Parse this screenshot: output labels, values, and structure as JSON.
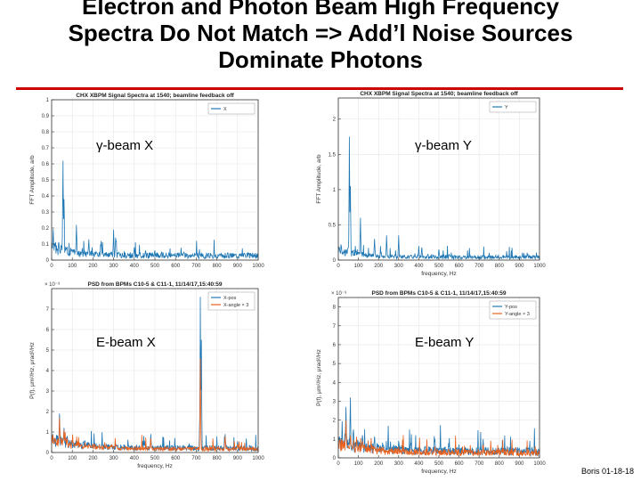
{
  "slide": {
    "title_lines": [
      "Electron and Photon Beam High Frequency",
      "Spectra Do Not Match => Add’l Noise Sources",
      "Dominate Photons"
    ],
    "footer": "Boris 01-18-18",
    "accent_color": "#cc0000"
  },
  "overlays": {
    "gx": "γ-beam X",
    "gy": "γ-beam Y",
    "ex": "E-beam X",
    "ey": "E-beam Y"
  },
  "chart_data": [
    {
      "type": "line",
      "title": "CHX XBPM Signal Spectra at 1540; beamline feedback off",
      "xlabel": "",
      "ylabel": "FFT Amplitude, arb",
      "xlim": [
        0,
        1000
      ],
      "ylim": [
        0,
        1
      ],
      "xticks": [
        0,
        100,
        200,
        300,
        400,
        500,
        600,
        700,
        800,
        900,
        1000
      ],
      "yticks": [
        0,
        0.1,
        0.2,
        0.3,
        0.4,
        0.5,
        0.6,
        0.7,
        0.8,
        0.9,
        1
      ],
      "ytick_labels": [
        "0",
        "0.1",
        "0.2",
        "0.3",
        "0.4",
        "0.5",
        "0.6",
        "0.7",
        "0.8",
        "0.9",
        "1"
      ],
      "exponent_label": "",
      "legend_position": "top-right",
      "series": [
        {
          "name": "X",
          "color": "#1f77b4",
          "noise_base": 0.04,
          "decay": 0.075,
          "decay_scale": 110,
          "seed": 3,
          "peaks": [
            [
              55,
              0.62
            ],
            [
              60,
              0.38
            ],
            [
              120,
              0.22
            ],
            [
              180,
              0.13
            ],
            [
              240,
              0.12
            ],
            [
              300,
              0.19
            ],
            [
              310,
              0.14
            ],
            [
              400,
              0.08
            ],
            [
              455,
              0.06
            ],
            [
              500,
              0.06
            ],
            [
              640,
              0.05
            ]
          ]
        }
      ]
    },
    {
      "type": "line",
      "title": "CHX XBPM Signal Spectra at 1540; beamline feedback off",
      "xlabel": "frequency, Hz",
      "ylabel": "FFT Amplitude, arb",
      "xlim": [
        0,
        1000
      ],
      "ylim": [
        0,
        2.3
      ],
      "xticks": [
        0,
        100,
        200,
        300,
        400,
        500,
        600,
        700,
        800,
        900,
        1000
      ],
      "yticks": [
        0,
        0.5,
        1,
        1.5,
        2
      ],
      "ytick_labels": [
        "0",
        "0.5",
        "1",
        "1.5",
        "2"
      ],
      "exponent_label": "",
      "legend_position": "top-right",
      "series": [
        {
          "name": "Y",
          "color": "#1f77b4",
          "noise_base": 0.06,
          "decay": 0.14,
          "decay_scale": 110,
          "seed": 7,
          "peaks": [
            [
              55,
              1.75
            ],
            [
              60,
              1.05
            ],
            [
              110,
              0.6
            ],
            [
              180,
              0.3
            ],
            [
              240,
              0.35
            ],
            [
              300,
              0.35
            ],
            [
              400,
              0.2
            ],
            [
              415,
              0.18
            ],
            [
              500,
              0.15
            ],
            [
              550,
              0.08
            ]
          ]
        }
      ]
    },
    {
      "type": "line",
      "title": "PSD from BPMs C10-5 & C11-1, 11/14/17,15:40:59",
      "xlabel": "frequency, Hz",
      "ylabel": "P(f), μm²/Hz, μrad²/Hz",
      "xlim": [
        0,
        1000
      ],
      "ylim": [
        0,
        8
      ],
      "xticks": [
        0,
        100,
        200,
        300,
        400,
        500,
        600,
        700,
        800,
        900,
        1000
      ],
      "yticks": [
        0,
        1,
        2,
        3,
        4,
        5,
        6,
        7
      ],
      "ytick_labels": [
        "0",
        "1",
        "2",
        "3",
        "4",
        "5",
        "6",
        "7"
      ],
      "exponent_label": "× 10⁻³",
      "legend_position": "top-right",
      "series": [
        {
          "name": "X-pos",
          "color": "#1f77b4",
          "noise_base": 0.3,
          "decay": 0.6,
          "decay_scale": 140,
          "seed": 11,
          "peaks": [
            [
              38,
              1.9
            ],
            [
              60,
              1.2
            ],
            [
              75,
              0.8
            ],
            [
              180,
              0.5
            ],
            [
              290,
              0.4
            ],
            [
              300,
              0.3
            ],
            [
              480,
              0.9
            ],
            [
              720,
              7.6
            ],
            [
              725,
              5.5
            ],
            [
              840,
              0.9
            ],
            [
              900,
              0.55
            ],
            [
              960,
              0.3
            ]
          ]
        },
        {
          "name": "X-angle × 3",
          "color": "#e8601c",
          "noise_base": 0.25,
          "decay": 0.55,
          "decay_scale": 140,
          "seed": 13,
          "peaks": [
            [
              38,
              1.7
            ],
            [
              60,
              1.1
            ],
            [
              75,
              0.7
            ],
            [
              180,
              0.4
            ],
            [
              290,
              0.35
            ],
            [
              480,
              0.7
            ],
            [
              720,
              4.6
            ],
            [
              840,
              0.8
            ],
            [
              900,
              0.4
            ]
          ]
        }
      ]
    },
    {
      "type": "line",
      "title": "PSD from BPMs C10-5 & C11-1, 11/14/17,15:40:59",
      "xlabel": "frequency, Hz",
      "ylabel": "P(f), μm²/Hz, μrad²/Hz",
      "xlim": [
        0,
        1000
      ],
      "ylim": [
        0,
        8.5
      ],
      "xticks": [
        0,
        100,
        200,
        300,
        400,
        500,
        600,
        700,
        800,
        900,
        1000
      ],
      "yticks": [
        0,
        1,
        2,
        3,
        4,
        5,
        6,
        7,
        8
      ],
      "ytick_labels": [
        "0",
        "1",
        "2",
        "3",
        "4",
        "5",
        "6",
        "7",
        "8"
      ],
      "exponent_label": "× 10⁻³",
      "legend_position": "top-right",
      "series": [
        {
          "name": "Y-pos",
          "color": "#1f77b4",
          "noise_base": 0.5,
          "decay": 0.8,
          "decay_scale": 140,
          "seed": 17,
          "peaks": [
            [
              38,
              2.7
            ],
            [
              60,
              3.2
            ],
            [
              75,
              1.5
            ],
            [
              120,
              1.2
            ],
            [
              180,
              1.1
            ],
            [
              220,
              0.8
            ],
            [
              300,
              0.9
            ],
            [
              360,
              0.8
            ],
            [
              480,
              1.0
            ],
            [
              600,
              0.7
            ],
            [
              720,
              1.0
            ],
            [
              840,
              0.6
            ],
            [
              900,
              0.5
            ]
          ]
        },
        {
          "name": "Y-angle × 3",
          "color": "#e8601c",
          "noise_base": 0.4,
          "decay": 0.6,
          "decay_scale": 140,
          "seed": 19,
          "peaks": [
            [
              38,
              2.0
            ],
            [
              60,
              1.2
            ],
            [
              120,
              0.9
            ],
            [
              180,
              0.6
            ],
            [
              300,
              0.6
            ],
            [
              480,
              0.6
            ],
            [
              720,
              0.7
            ],
            [
              840,
              0.5
            ]
          ]
        }
      ]
    }
  ]
}
